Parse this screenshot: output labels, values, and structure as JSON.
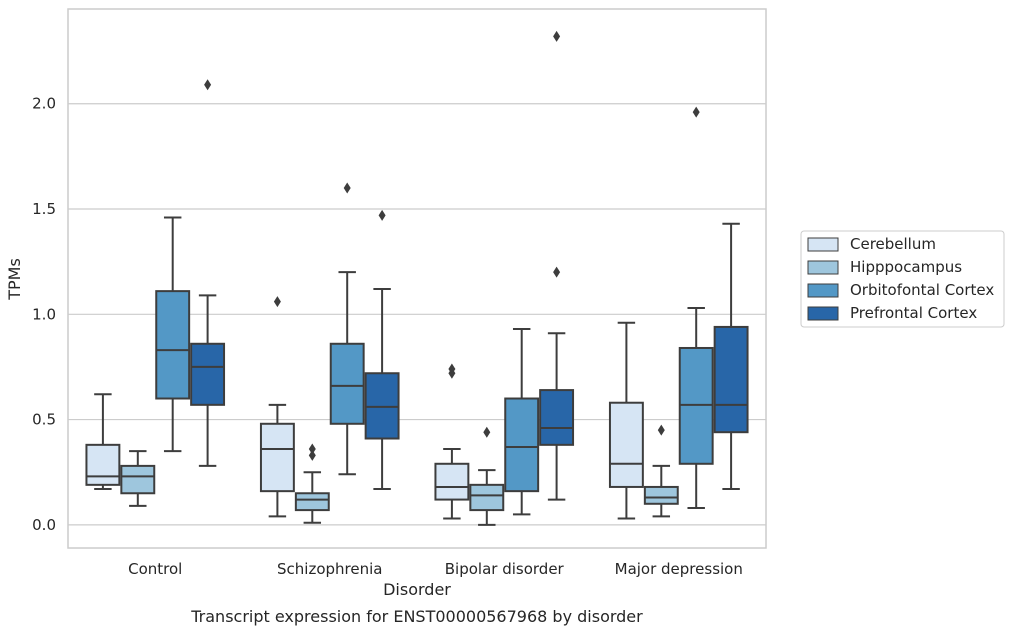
{
  "caption": "Transcript expression for ENST00000567968 by disorder",
  "chart_data": {
    "type": "box",
    "xlabel": "Disorder",
    "ylabel": "TPMs",
    "ylim": [
      -0.11,
      2.45
    ],
    "yticks": [
      "0.0",
      "0.5",
      "1.0",
      "1.5",
      "2.0"
    ],
    "grid": "horizontal",
    "legend_position": "right",
    "categories": [
      "Control",
      "Schizophrenia",
      "Bipolar disorder",
      "Major depression"
    ],
    "series": [
      {
        "name": "Cerebellum",
        "color": "#d6e5f4",
        "boxes": [
          {
            "whislo": 0.17,
            "q1": 0.19,
            "med": 0.23,
            "q3": 0.38,
            "whishi": 0.62,
            "fliers": []
          },
          {
            "whislo": 0.04,
            "q1": 0.16,
            "med": 0.36,
            "q3": 0.48,
            "whishi": 0.57,
            "fliers": [
              1.06
            ]
          },
          {
            "whislo": 0.03,
            "q1": 0.12,
            "med": 0.18,
            "q3": 0.29,
            "whishi": 0.36,
            "fliers": [
              0.72,
              0.74
            ]
          },
          {
            "whislo": 0.03,
            "q1": 0.18,
            "med": 0.29,
            "q3": 0.58,
            "whishi": 0.96,
            "fliers": []
          }
        ]
      },
      {
        "name": "Hipppocampus",
        "color": "#9ec6dd",
        "boxes": [
          {
            "whislo": 0.09,
            "q1": 0.15,
            "med": 0.23,
            "q3": 0.28,
            "whishi": 0.35,
            "fliers": []
          },
          {
            "whislo": 0.01,
            "q1": 0.07,
            "med": 0.12,
            "q3": 0.15,
            "whishi": 0.25,
            "fliers": [
              0.33,
              0.36
            ]
          },
          {
            "whislo": 0.0,
            "q1": 0.07,
            "med": 0.14,
            "q3": 0.19,
            "whishi": 0.26,
            "fliers": [
              0.44
            ]
          },
          {
            "whislo": 0.04,
            "q1": 0.1,
            "med": 0.13,
            "q3": 0.18,
            "whishi": 0.28,
            "fliers": [
              0.45
            ]
          }
        ]
      },
      {
        "name": "Orbitofontal Cortex",
        "color": "#5398c6",
        "boxes": [
          {
            "whislo": 0.35,
            "q1": 0.6,
            "med": 0.83,
            "q3": 1.11,
            "whishi": 1.46,
            "fliers": []
          },
          {
            "whislo": 0.24,
            "q1": 0.48,
            "med": 0.66,
            "q3": 0.86,
            "whishi": 1.2,
            "fliers": [
              1.6
            ]
          },
          {
            "whislo": 0.05,
            "q1": 0.16,
            "med": 0.37,
            "q3": 0.6,
            "whishi": 0.93,
            "fliers": []
          },
          {
            "whislo": 0.08,
            "q1": 0.29,
            "med": 0.57,
            "q3": 0.84,
            "whishi": 1.03,
            "fliers": [
              1.96
            ]
          }
        ]
      },
      {
        "name": "Prefrontal Cortex",
        "color": "#2866a8",
        "boxes": [
          {
            "whislo": 0.28,
            "q1": 0.57,
            "med": 0.75,
            "q3": 0.86,
            "whishi": 1.09,
            "fliers": [
              2.09
            ]
          },
          {
            "whislo": 0.17,
            "q1": 0.41,
            "med": 0.56,
            "q3": 0.72,
            "whishi": 1.12,
            "fliers": [
              1.47
            ]
          },
          {
            "whislo": 0.12,
            "q1": 0.38,
            "med": 0.46,
            "q3": 0.64,
            "whishi": 0.91,
            "fliers": [
              1.2,
              2.32
            ]
          },
          {
            "whislo": 0.17,
            "q1": 0.44,
            "med": 0.57,
            "q3": 0.94,
            "whishi": 1.43,
            "fliers": []
          }
        ]
      }
    ]
  }
}
